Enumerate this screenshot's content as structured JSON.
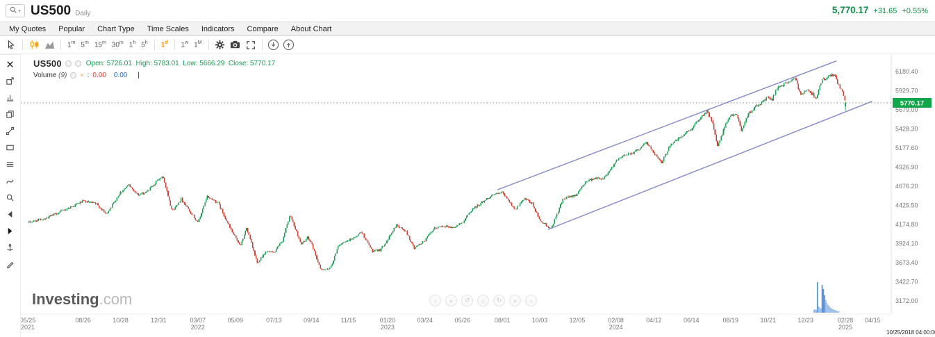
{
  "header": {
    "symbol": "US500",
    "interval": "Daily",
    "last_price": "5,770.17",
    "change": "+31.65",
    "change_pct": "+0.55%"
  },
  "menu": {
    "items": [
      "My Quotes",
      "Popular",
      "Chart Type",
      "Time Scales",
      "Indicators",
      "Compare",
      "About Chart"
    ]
  },
  "toolbar": {
    "timeframes": [
      {
        "label": "1m",
        "num": "1",
        "unit": "m",
        "active": false
      },
      {
        "label": "5m",
        "num": "5",
        "unit": "m",
        "active": false
      },
      {
        "label": "15m",
        "num": "15",
        "unit": "m",
        "active": false
      },
      {
        "label": "30m",
        "num": "30",
        "unit": "m",
        "active": false
      },
      {
        "label": "1h",
        "num": "1",
        "unit": "h",
        "active": false
      },
      {
        "label": "5h",
        "num": "5",
        "unit": "h",
        "active": false
      },
      {
        "label": "1d",
        "num": "1",
        "unit": "d",
        "active": true
      },
      {
        "label": "1w",
        "num": "1",
        "unit": "w",
        "active": false
      },
      {
        "label": "1M",
        "num": "1",
        "unit": "M",
        "active": false
      }
    ]
  },
  "legend": {
    "symbol": "US500",
    "ohlc": "Open: 5726.01  High: 5783.01  Low: 5666.29  Close: 5770.17",
    "volume_label": "Volume",
    "volume_param": "(9)",
    "remove_glyph": "×",
    "volume_colon": ":",
    "volume_value_red": "0.00",
    "volume_value_blue": "0.00",
    "cursor_bar": "|"
  },
  "watermark": {
    "brand": "Investing",
    "suffix": ".com"
  },
  "price_tag": "5770.17",
  "chart_controls": {
    "glyphs": [
      "‹",
      "«",
      "↺",
      "⌂",
      "↻",
      "»",
      "›"
    ]
  },
  "footer": {
    "timestamp": "10/25/2018 04:00:00"
  },
  "colors": {
    "up": "#1f9d55",
    "down": "#d23f31",
    "channel": "#8187c9",
    "tag_bg": "#10a64a",
    "accent": "#f7941d",
    "green_text": "#0a8f43",
    "vol_fill": "#9dbfe8",
    "vol_strong": "#5e93d9",
    "axis_text": "#777777"
  },
  "chart_data": {
    "type": "candlestick",
    "symbol": "US500",
    "interval": "Daily",
    "title": "US500 Daily candlestick chart with ascending channel",
    "ohlc_last": {
      "open": 5726.01,
      "high": 5783.01,
      "low": 5666.29,
      "close": 5770.17
    },
    "change": 31.65,
    "change_pct": 0.55,
    "current_price_line": 5770.17,
    "ylim": [
      3172.0,
      6180.4
    ],
    "y_ticks": [
      "6180.40",
      "5929.70",
      "5679.00",
      "5428.30",
      "5177.60",
      "4926.90",
      "4676.20",
      "4425.50",
      "4174.80",
      "3924.10",
      "3673.40",
      "3422.70",
      "3172.00"
    ],
    "x_axis_unit": "days since 2021-05-25",
    "axis_end_day": 1421,
    "data_end_day": 1375,
    "x_labels": [
      {
        "text": "05/25",
        "year": "2021",
        "day": 0
      },
      {
        "text": "08/26",
        "day": 93
      },
      {
        "text": "10/28",
        "day": 156
      },
      {
        "text": "12/31",
        "day": 220
      },
      {
        "text": "03/07",
        "year": "2022",
        "day": 286
      },
      {
        "text": "05/09",
        "day": 349
      },
      {
        "text": "07/13",
        "day": 414
      },
      {
        "text": "09/14",
        "day": 477
      },
      {
        "text": "11/15",
        "day": 539
      },
      {
        "text": "01/20",
        "year": "2023",
        "day": 605
      },
      {
        "text": "03/24",
        "day": 668
      },
      {
        "text": "05/26",
        "day": 731
      },
      {
        "text": "08/01",
        "day": 798
      },
      {
        "text": "10/03",
        "day": 861
      },
      {
        "text": "12/05",
        "day": 924
      },
      {
        "text": "02/08",
        "year": "2024",
        "day": 989
      },
      {
        "text": "04/12",
        "day": 1053
      },
      {
        "text": "06/14",
        "day": 1116
      },
      {
        "text": "08/19",
        "day": 1182
      },
      {
        "text": "10/21",
        "day": 1245
      },
      {
        "text": "12/23",
        "day": 1308
      },
      {
        "text": "02/28",
        "year": "2025",
        "day": 1375
      },
      {
        "text": "04/15",
        "day": 1421
      }
    ],
    "series_anchors": [
      [
        0,
        4200
      ],
      [
        30,
        4255
      ],
      [
        60,
        4360
      ],
      [
        93,
        4480
      ],
      [
        115,
        4445
      ],
      [
        132,
        4310
      ],
      [
        156,
        4600
      ],
      [
        170,
        4690
      ],
      [
        186,
        4560
      ],
      [
        200,
        4600
      ],
      [
        220,
        4770
      ],
      [
        228,
        4793
      ],
      [
        243,
        4350
      ],
      [
        258,
        4510
      ],
      [
        270,
        4380
      ],
      [
        286,
        4200
      ],
      [
        302,
        4540
      ],
      [
        320,
        4460
      ],
      [
        340,
        4130
      ],
      [
        349,
        4000
      ],
      [
        358,
        3900
      ],
      [
        368,
        4130
      ],
      [
        386,
        3670
      ],
      [
        400,
        3820
      ],
      [
        414,
        3800
      ],
      [
        428,
        3960
      ],
      [
        441,
        4300
      ],
      [
        460,
        3910
      ],
      [
        470,
        4000
      ],
      [
        477,
        3930
      ],
      [
        492,
        3590
      ],
      [
        506,
        3580
      ],
      [
        514,
        3700
      ],
      [
        522,
        3900
      ],
      [
        539,
        3960
      ],
      [
        552,
        4020
      ],
      [
        561,
        4080
      ],
      [
        580,
        3820
      ],
      [
        592,
        3840
      ],
      [
        605,
        3970
      ],
      [
        620,
        4170
      ],
      [
        636,
        4080
      ],
      [
        650,
        3860
      ],
      [
        668,
        3970
      ],
      [
        685,
        4130
      ],
      [
        700,
        4160
      ],
      [
        715,
        4130
      ],
      [
        731,
        4200
      ],
      [
        748,
        4380
      ],
      [
        762,
        4450
      ],
      [
        780,
        4560
      ],
      [
        798,
        4590
      ],
      [
        820,
        4370
      ],
      [
        835,
        4510
      ],
      [
        848,
        4450
      ],
      [
        861,
        4230
      ],
      [
        880,
        4120
      ],
      [
        900,
        4500
      ],
      [
        915,
        4550
      ],
      [
        924,
        4570
      ],
      [
        938,
        4740
      ],
      [
        952,
        4780
      ],
      [
        968,
        4780
      ],
      [
        980,
        4900
      ],
      [
        989,
        5000
      ],
      [
        1005,
        5090
      ],
      [
        1022,
        5130
      ],
      [
        1040,
        5250
      ],
      [
        1053,
        5120
      ],
      [
        1066,
        4975
      ],
      [
        1080,
        5220
      ],
      [
        1095,
        5300
      ],
      [
        1116,
        5430
      ],
      [
        1130,
        5570
      ],
      [
        1142,
        5665
      ],
      [
        1152,
        5500
      ],
      [
        1160,
        5190
      ],
      [
        1172,
        5450
      ],
      [
        1182,
        5610
      ],
      [
        1192,
        5625
      ],
      [
        1200,
        5410
      ],
      [
        1212,
        5630
      ],
      [
        1225,
        5720
      ],
      [
        1238,
        5800
      ],
      [
        1245,
        5850
      ],
      [
        1252,
        5810
      ],
      [
        1262,
        5990
      ],
      [
        1270,
        6000
      ],
      [
        1280,
        6050
      ],
      [
        1290,
        6090
      ],
      [
        1300,
        5880
      ],
      [
        1308,
        5940
      ],
      [
        1316,
        5910
      ],
      [
        1326,
        5840
      ],
      [
        1336,
        6070
      ],
      [
        1348,
        6115
      ],
      [
        1356,
        6140
      ],
      [
        1364,
        6000
      ],
      [
        1370,
        5920
      ],
      [
        1375,
        5770.17
      ]
    ],
    "channel": {
      "upper": [
        [
          790,
          4630
        ],
        [
          1360,
          6320
        ]
      ],
      "lower": [
        [
          875,
          4110
        ],
        [
          1420,
          5790
        ]
      ]
    },
    "volume_bars": [
      [
        1322,
        4
      ],
      [
        1324,
        5
      ],
      [
        1326,
        4
      ],
      [
        1328,
        44
      ],
      [
        1330,
        9
      ],
      [
        1332,
        7
      ],
      [
        1334,
        6
      ],
      [
        1336,
        40
      ],
      [
        1338,
        34
      ],
      [
        1340,
        25
      ],
      [
        1342,
        18
      ],
      [
        1344,
        14
      ],
      [
        1346,
        11
      ],
      [
        1348,
        9
      ],
      [
        1350,
        7
      ],
      [
        1352,
        6
      ],
      [
        1354,
        5
      ],
      [
        1356,
        4
      ],
      [
        1358,
        4
      ],
      [
        1360,
        3
      ],
      [
        1362,
        2
      ],
      [
        1364,
        2
      ]
    ]
  }
}
